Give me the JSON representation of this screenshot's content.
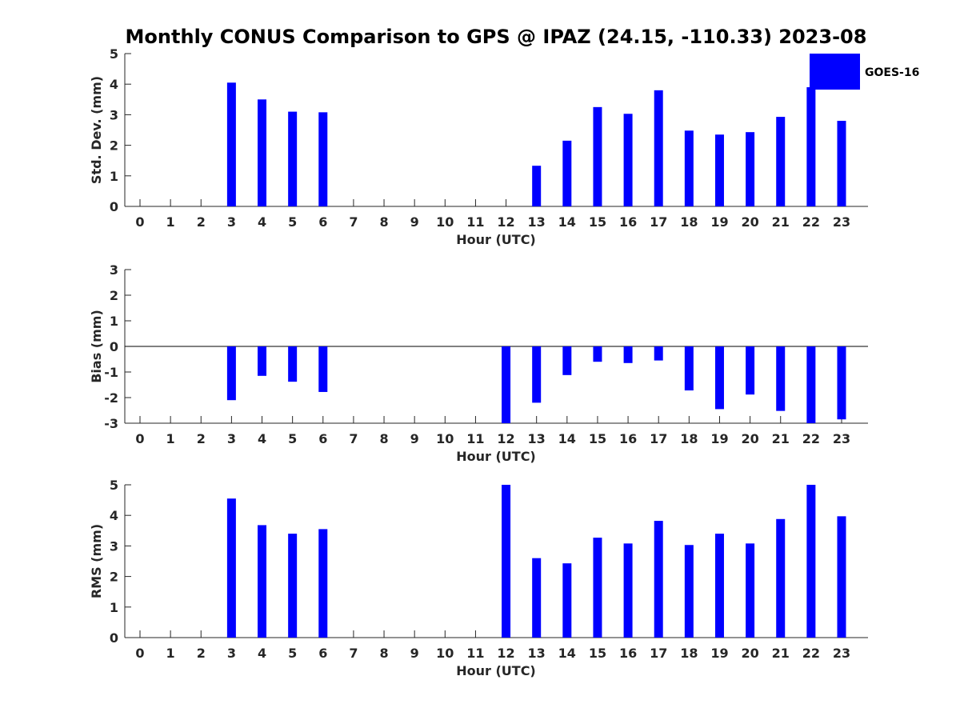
{
  "title": "Monthly CONUS Comparison to GPS @ IPAZ (24.15, -110.33) 2023-08",
  "legend": {
    "label": "GOES-16",
    "color": "#0000ff",
    "placement": "top-right"
  },
  "chart_data": [
    {
      "type": "bar",
      "xlabel": "Hour (UTC)",
      "ylabel": "Std. Dev. (mm)",
      "ylim": [
        0,
        5
      ],
      "yticks": [
        "0",
        "1",
        "2",
        "3",
        "4",
        "5"
      ],
      "categories": [
        "0",
        "1",
        "2",
        "3",
        "4",
        "5",
        "6",
        "7",
        "8",
        "9",
        "10",
        "11",
        "12",
        "13",
        "14",
        "15",
        "16",
        "17",
        "18",
        "19",
        "20",
        "21",
        "22",
        "23"
      ],
      "series": [
        {
          "name": "GOES-16",
          "color": "#0000ff",
          "values": [
            null,
            null,
            null,
            4.05,
            3.5,
            3.1,
            3.08,
            null,
            null,
            null,
            null,
            null,
            null,
            1.33,
            2.15,
            3.25,
            3.03,
            3.8,
            2.48,
            2.35,
            2.43,
            2.93,
            3.9,
            2.8
          ]
        }
      ]
    },
    {
      "type": "bar",
      "xlabel": "Hour (UTC)",
      "ylabel": "Bias (mm)",
      "ylim": [
        -3,
        3
      ],
      "yticks": [
        "-3",
        "-2",
        "-1",
        "0",
        "1",
        "2",
        "3"
      ],
      "zero_line": true,
      "categories": [
        "0",
        "1",
        "2",
        "3",
        "4",
        "5",
        "6",
        "7",
        "8",
        "9",
        "10",
        "11",
        "12",
        "13",
        "14",
        "15",
        "16",
        "17",
        "18",
        "19",
        "20",
        "21",
        "22",
        "23"
      ],
      "series": [
        {
          "name": "GOES-16",
          "color": "#0000ff",
          "values": [
            null,
            null,
            null,
            -2.1,
            -1.15,
            -1.38,
            -1.78,
            null,
            null,
            null,
            null,
            null,
            -3.0,
            -2.2,
            -1.12,
            -0.6,
            -0.65,
            -0.55,
            -1.72,
            -2.45,
            -1.88,
            -2.52,
            -3.0,
            -2.85
          ]
        }
      ]
    },
    {
      "type": "bar",
      "xlabel": "Hour (UTC)",
      "ylabel": "RMS (mm)",
      "ylim": [
        0,
        5
      ],
      "yticks": [
        "0",
        "1",
        "2",
        "3",
        "4",
        "5"
      ],
      "categories": [
        "0",
        "1",
        "2",
        "3",
        "4",
        "5",
        "6",
        "7",
        "8",
        "9",
        "10",
        "11",
        "12",
        "13",
        "14",
        "15",
        "16",
        "17",
        "18",
        "19",
        "20",
        "21",
        "22",
        "23"
      ],
      "series": [
        {
          "name": "GOES-16",
          "color": "#0000ff",
          "values": [
            null,
            null,
            null,
            4.55,
            3.68,
            3.4,
            3.55,
            null,
            null,
            null,
            null,
            null,
            5.0,
            2.6,
            2.43,
            3.27,
            3.08,
            3.82,
            3.03,
            3.4,
            3.08,
            3.88,
            5.0,
            3.97
          ]
        }
      ]
    }
  ]
}
